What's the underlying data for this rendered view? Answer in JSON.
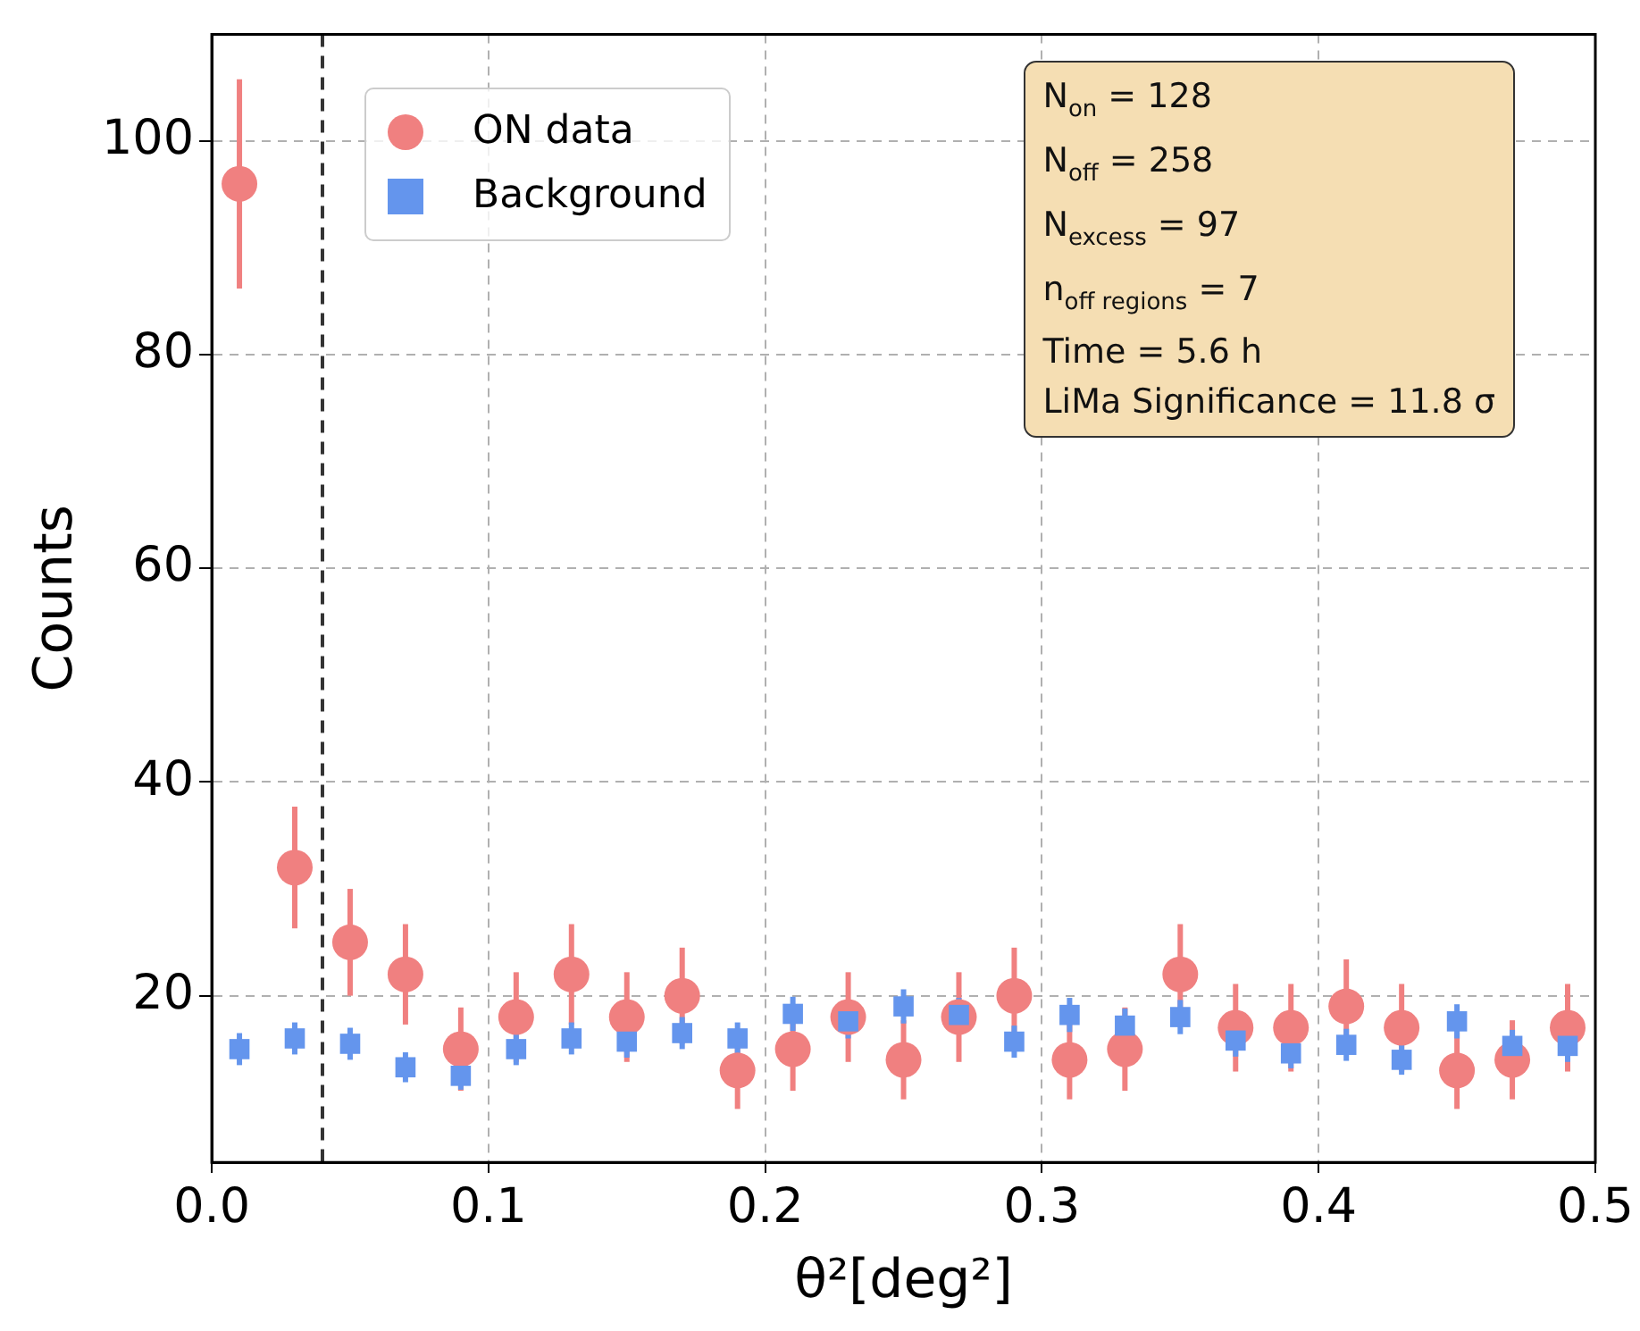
{
  "chart_data": {
    "type": "scatter",
    "xlabel": "θ²[deg²]",
    "ylabel": "Counts",
    "x": [
      0.01,
      0.03,
      0.05,
      0.07,
      0.09,
      0.11,
      0.13,
      0.15,
      0.17,
      0.19,
      0.21,
      0.23,
      0.25,
      0.27,
      0.29,
      0.31,
      0.33,
      0.35,
      0.37,
      0.39,
      0.41,
      0.43,
      0.45,
      0.47,
      0.49
    ],
    "series": [
      {
        "name": "ON data",
        "color": "#f08080",
        "marker": "circle",
        "values": [
          96,
          32,
          25,
          22,
          15,
          18,
          22,
          18,
          20,
          13,
          15,
          18,
          14,
          18,
          20,
          14,
          15,
          22,
          17,
          17,
          19,
          17,
          13,
          14,
          17
        ],
        "errors": [
          9.8,
          5.7,
          5,
          4.7,
          3.9,
          4.2,
          4.7,
          4.2,
          4.5,
          3.6,
          3.9,
          4.2,
          3.7,
          4.2,
          4.5,
          3.7,
          3.9,
          4.7,
          4.1,
          4.1,
          4.4,
          4.1,
          3.6,
          3.7,
          4.1
        ]
      },
      {
        "name": "Background",
        "color": "#6495ed",
        "marker": "square",
        "values": [
          15,
          16,
          15.5,
          13.3,
          12.5,
          15,
          16,
          15.7,
          16.5,
          16,
          18.3,
          17.6,
          19,
          18.2,
          15.7,
          18.2,
          17.2,
          18,
          15.8,
          14.6,
          15.4,
          14,
          17.6,
          15.3,
          15.3
        ],
        "errors": [
          1.5,
          1.5,
          1.5,
          1.4,
          1.3,
          1.5,
          1.5,
          1.5,
          1.5,
          1.5,
          1.6,
          1.6,
          1.6,
          1.6,
          1.5,
          1.6,
          1.6,
          1.6,
          1.5,
          1.4,
          1.5,
          1.4,
          1.6,
          1.5,
          1.5
        ]
      }
    ],
    "xlim": [
      0,
      0.5
    ],
    "xticks": [
      {
        "value": 0,
        "label": "0.0"
      },
      0.1,
      0.2,
      0.3,
      0.4,
      0.5
    ],
    "ylim": [
      4.4,
      110
    ],
    "yticks": [
      20,
      40,
      60,
      80,
      100
    ],
    "grid": true,
    "legend": "top left",
    "ref_lines": [
      {
        "axis": "x",
        "value": 0.04,
        "color": "#333333",
        "line_style": "dashed"
      }
    ],
    "annotations": [
      "N$_{on}$ = 128",
      "N$_{off}$ = 258",
      "N$_{excess}$ = 97",
      "n$_{off regions}$ = 7",
      "Time = 5.6 h",
      "LiMa Significance = 11.8 σ"
    ]
  }
}
